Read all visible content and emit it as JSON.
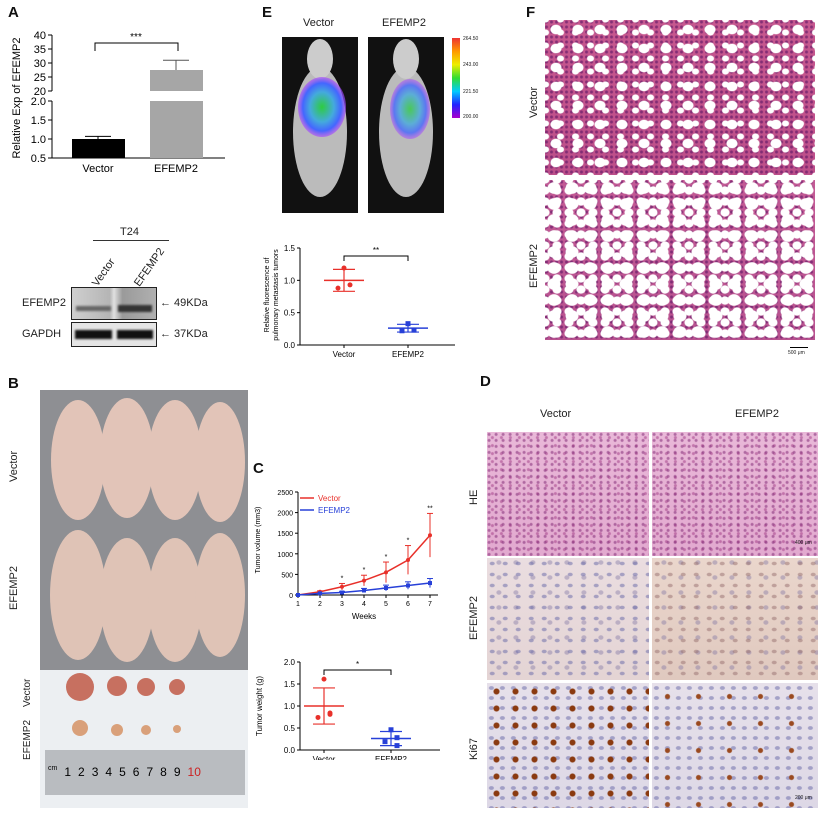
{
  "panels": {
    "A": "A",
    "B": "B",
    "C": "C",
    "D": "D",
    "E": "E",
    "F": "F"
  },
  "chart_data": [
    {
      "id": "A",
      "type": "bar",
      "categories": [
        "Vector",
        "EFEMP2"
      ],
      "values": [
        1.0,
        27.5
      ],
      "errors": [
        0.07,
        3.5
      ],
      "colors": [
        "#000000",
        "#a6a6a6"
      ],
      "ylabel": "Relative Exp of EFEMP2",
      "broken_axis": true,
      "ylim_lower": [
        0.5,
        2.0
      ],
      "ylim_upper": [
        20,
        40
      ],
      "yticks_lower": [
        "0.5",
        "1.0",
        "1.5",
        "2.0"
      ],
      "yticks_upper": [
        "20",
        "25",
        "30",
        "35",
        "40"
      ],
      "significance": "***"
    },
    {
      "id": "E",
      "type": "scatter",
      "categories": [
        "Vector",
        "EFEMP2"
      ],
      "points": [
        [
          1.19,
          0.93,
          0.88
        ],
        [
          0.33,
          0.23,
          0.22
        ]
      ],
      "means": [
        1.0,
        0.26
      ],
      "sd": [
        0.17,
        0.06
      ],
      "colors": [
        "#e8302a",
        "#2740d8"
      ],
      "ylabel": "Relative fluorescence of pulmonary metastasis tumors",
      "ylim": [
        0,
        1.5
      ],
      "yticks": [
        "0.0",
        "0.5",
        "1.0",
        "1.5"
      ],
      "significance": "**"
    },
    {
      "id": "C1",
      "type": "line",
      "x": [
        1,
        2,
        3,
        4,
        5,
        6,
        7
      ],
      "xlabel": "Weeks",
      "ylabel": "Tumor volume (mm3)",
      "ylim": [
        0,
        2500
      ],
      "yticks": [
        "0",
        "500",
        "1000",
        "1500",
        "2000",
        "2500"
      ],
      "series": [
        {
          "name": "Vector",
          "color": "#e8302a",
          "values": [
            0,
            80,
            200,
            350,
            550,
            850,
            1450
          ],
          "errors": [
            0,
            20,
            80,
            130,
            250,
            350,
            530
          ]
        },
        {
          "name": "EFEMP2",
          "color": "#2740d8",
          "values": [
            0,
            40,
            60,
            110,
            170,
            230,
            290
          ],
          "errors": [
            0,
            10,
            30,
            50,
            70,
            90,
            110
          ]
        }
      ],
      "significance": [
        "",
        "",
        "*",
        "*",
        "*",
        "*",
        "**"
      ],
      "legend": "top-left"
    },
    {
      "id": "C2",
      "type": "scatter",
      "categories": [
        "Vector",
        "EFEMP2"
      ],
      "points": [
        [
          1.61,
          0.84,
          0.74,
          0.81
        ],
        [
          0.46,
          0.28,
          0.19,
          0.1
        ]
      ],
      "means": [
        1.0,
        0.26
      ],
      "sd": [
        0.41,
        0.16
      ],
      "colors": [
        "#e8302a",
        "#2740d8"
      ],
      "ylabel": "Tumor weight (g)",
      "ylim": [
        0,
        2.0
      ],
      "yticks": [
        "0.0",
        "0.5",
        "1.0",
        "1.5",
        "2.0"
      ],
      "significance": "*"
    }
  ],
  "blot": {
    "cell": "T24",
    "lanes": [
      "Vector",
      "EFEMP2"
    ],
    "rows": [
      "EFEMP2",
      "GAPDH"
    ],
    "sizes": [
      "← 49KDa",
      "← 37KDa"
    ]
  },
  "E_images": {
    "labels": [
      "Vector",
      "EFEMP2"
    ],
    "colorbar": [
      "264.50",
      "243.00",
      "221.50",
      "200.00"
    ]
  },
  "F": {
    "rows": [
      "Vector",
      "EFEMP2"
    ],
    "scale": "500 μm"
  },
  "B": {
    "rows": [
      "Vector",
      "EFEMP2"
    ],
    "tumor_rows": [
      "Vector",
      "EFEMP2"
    ],
    "ruler": [
      "cm",
      "1",
      "2",
      "3",
      "4",
      "5",
      "6",
      "7",
      "8",
      "9",
      "10"
    ]
  },
  "D": {
    "cols": [
      "Vector",
      "EFEMP2"
    ],
    "rows": [
      "HE",
      "EFEMP2",
      "Ki67"
    ],
    "scale1": "400 μm",
    "scale2": "200 μm"
  }
}
